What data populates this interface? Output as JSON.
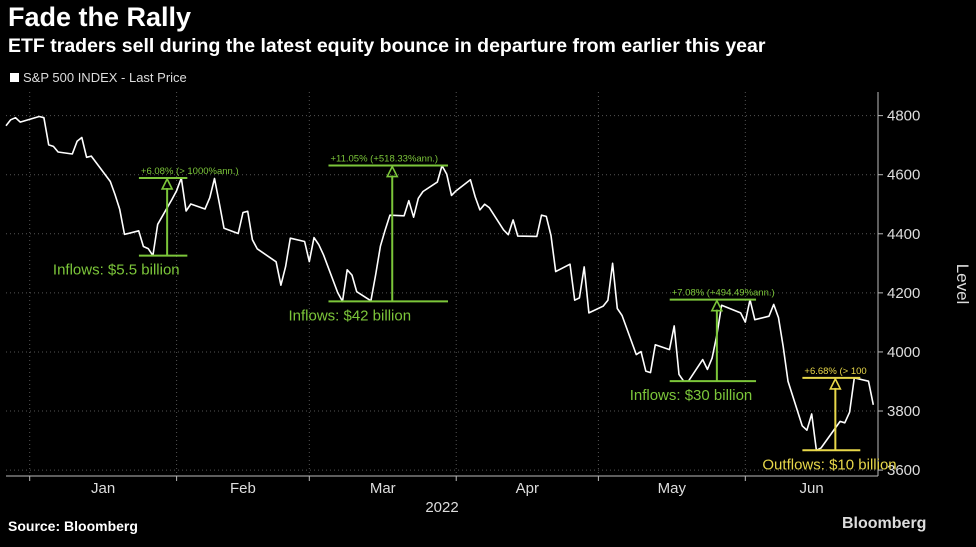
{
  "title": "Fade the Rally",
  "subtitle": "ETF traders sell during the latest equity bounce in departure from earlier this year",
  "legend": "S&P 500 INDEX - Last Price",
  "source": "Source: Bloomberg",
  "watermark": "Bloomberg",
  "colors": {
    "background": "#000000",
    "line": "#ffffff",
    "green": "#7cc63a",
    "yellow": "#e8d84a",
    "grid": "#555555"
  },
  "chart_data": {
    "type": "line",
    "title": "Fade the Rally",
    "ylabel": "Level",
    "xlabel": "2022",
    "ylim": [
      3580,
      4880
    ],
    "yticks": [
      3600,
      3800,
      4000,
      4200,
      4400,
      4600,
      4800
    ],
    "grid": true,
    "legend_position": "top-left",
    "x_month_labels": [
      "Jan",
      "Feb",
      "Mar",
      "Apr",
      "May",
      "Jun"
    ],
    "series": [
      {
        "name": "S&P 500 INDEX - Last Price",
        "points": [
          [
            "2021-12-27",
            4766
          ],
          [
            "2021-12-28",
            4786
          ],
          [
            "2021-12-29",
            4793
          ],
          [
            "2021-12-30",
            4778
          ],
          [
            "2022-01-03",
            4797
          ],
          [
            "2022-01-04",
            4793
          ],
          [
            "2022-01-05",
            4701
          ],
          [
            "2022-01-06",
            4696
          ],
          [
            "2022-01-07",
            4677
          ],
          [
            "2022-01-10",
            4670
          ],
          [
            "2022-01-11",
            4713
          ],
          [
            "2022-01-12",
            4726
          ],
          [
            "2022-01-13",
            4659
          ],
          [
            "2022-01-14",
            4663
          ],
          [
            "2022-01-18",
            4577
          ],
          [
            "2022-01-19",
            4533
          ],
          [
            "2022-01-20",
            4483
          ],
          [
            "2022-01-21",
            4398
          ],
          [
            "2022-01-24",
            4410
          ],
          [
            "2022-01-25",
            4357
          ],
          [
            "2022-01-26",
            4350
          ],
          [
            "2022-01-27",
            4326
          ],
          [
            "2022-01-28",
            4432
          ],
          [
            "2022-01-31",
            4516
          ],
          [
            "2022-02-01",
            4546
          ],
          [
            "2022-02-02",
            4589
          ],
          [
            "2022-02-03",
            4477
          ],
          [
            "2022-02-04",
            4501
          ],
          [
            "2022-02-07",
            4484
          ],
          [
            "2022-02-08",
            4522
          ],
          [
            "2022-02-09",
            4587
          ],
          [
            "2022-02-10",
            4504
          ],
          [
            "2022-02-11",
            4419
          ],
          [
            "2022-02-14",
            4401
          ],
          [
            "2022-02-15",
            4472
          ],
          [
            "2022-02-16",
            4476
          ],
          [
            "2022-02-17",
            4380
          ],
          [
            "2022-02-18",
            4349
          ],
          [
            "2022-02-22",
            4305
          ],
          [
            "2022-02-23",
            4226
          ],
          [
            "2022-02-24",
            4289
          ],
          [
            "2022-02-25",
            4385
          ],
          [
            "2022-02-28",
            4374
          ],
          [
            "2022-03-01",
            4306
          ],
          [
            "2022-03-02",
            4387
          ],
          [
            "2022-03-03",
            4363
          ],
          [
            "2022-03-04",
            4329
          ],
          [
            "2022-03-07",
            4201
          ],
          [
            "2022-03-08",
            4171
          ],
          [
            "2022-03-09",
            4278
          ],
          [
            "2022-03-10",
            4260
          ],
          [
            "2022-03-11",
            4204
          ],
          [
            "2022-03-14",
            4173
          ],
          [
            "2022-03-15",
            4262
          ],
          [
            "2022-03-16",
            4358
          ],
          [
            "2022-03-17",
            4412
          ],
          [
            "2022-03-18",
            4463
          ],
          [
            "2022-03-21",
            4461
          ],
          [
            "2022-03-22",
            4512
          ],
          [
            "2022-03-23",
            4456
          ],
          [
            "2022-03-24",
            4520
          ],
          [
            "2022-03-25",
            4543
          ],
          [
            "2022-03-28",
            4575
          ],
          [
            "2022-03-29",
            4631
          ],
          [
            "2022-03-30",
            4602
          ],
          [
            "2022-03-31",
            4530
          ],
          [
            "2022-04-01",
            4546
          ],
          [
            "2022-04-04",
            4583
          ],
          [
            "2022-04-05",
            4525
          ],
          [
            "2022-04-06",
            4481
          ],
          [
            "2022-04-07",
            4500
          ],
          [
            "2022-04-08",
            4488
          ],
          [
            "2022-04-11",
            4413
          ],
          [
            "2022-04-12",
            4397
          ],
          [
            "2022-04-13",
            4447
          ],
          [
            "2022-04-14",
            4392
          ],
          [
            "2022-04-18",
            4391
          ],
          [
            "2022-04-19",
            4463
          ],
          [
            "2022-04-20",
            4459
          ],
          [
            "2022-04-21",
            4394
          ],
          [
            "2022-04-22",
            4272
          ],
          [
            "2022-04-25",
            4297
          ],
          [
            "2022-04-26",
            4175
          ],
          [
            "2022-04-27",
            4183
          ],
          [
            "2022-04-28",
            4288
          ],
          [
            "2022-04-29",
            4132
          ],
          [
            "2022-05-02",
            4155
          ],
          [
            "2022-05-03",
            4175
          ],
          [
            "2022-05-04",
            4300
          ],
          [
            "2022-05-05",
            4147
          ],
          [
            "2022-05-06",
            4123
          ],
          [
            "2022-05-09",
            3991
          ],
          [
            "2022-05-10",
            4001
          ],
          [
            "2022-05-11",
            3935
          ],
          [
            "2022-05-12",
            3930
          ],
          [
            "2022-05-13",
            4024
          ],
          [
            "2022-05-16",
            4008
          ],
          [
            "2022-05-17",
            4088
          ],
          [
            "2022-05-18",
            3924
          ],
          [
            "2022-05-19",
            3901
          ],
          [
            "2022-05-20",
            3901
          ],
          [
            "2022-05-23",
            3974
          ],
          [
            "2022-05-24",
            3941
          ],
          [
            "2022-05-25",
            3979
          ],
          [
            "2022-05-26",
            4058
          ],
          [
            "2022-05-27",
            4158
          ],
          [
            "2022-05-31",
            4132
          ],
          [
            "2022-06-01",
            4101
          ],
          [
            "2022-06-02",
            4177
          ],
          [
            "2022-06-03",
            4109
          ],
          [
            "2022-06-06",
            4121
          ],
          [
            "2022-06-07",
            4161
          ],
          [
            "2022-06-08",
            4116
          ],
          [
            "2022-06-09",
            4018
          ],
          [
            "2022-06-10",
            3901
          ],
          [
            "2022-06-13",
            3750
          ],
          [
            "2022-06-14",
            3735
          ],
          [
            "2022-06-15",
            3790
          ],
          [
            "2022-06-16",
            3667
          ],
          [
            "2022-06-17",
            3675
          ],
          [
            "2022-06-21",
            3765
          ],
          [
            "2022-06-22",
            3760
          ],
          [
            "2022-06-23",
            3796
          ],
          [
            "2022-06-24",
            3912
          ],
          [
            "2022-06-27",
            3901
          ],
          [
            "2022-06-28",
            3821
          ]
        ]
      }
    ],
    "annotations": [
      {
        "type": "rally",
        "color": "green",
        "from_date": "2022-01-27",
        "to_date": "2022-02-02",
        "low": 4326,
        "high": 4589,
        "change_label": "+6.08% (> 1000%ann.)",
        "flow_label": "Inflows: $5.5 billion"
      },
      {
        "type": "rally",
        "color": "green",
        "from_date": "2022-03-08",
        "to_date": "2022-03-29",
        "low": 4171,
        "high": 4631,
        "change_label": "+11.05% (+518.33%ann.)",
        "flow_label": "Inflows: $42 billion"
      },
      {
        "type": "rally",
        "color": "green",
        "from_date": "2022-05-19",
        "to_date": "2022-06-02",
        "low": 3901,
        "high": 4177,
        "change_label": "+7.08% (+494.49%ann.)",
        "flow_label": "Inflows: $30 billion"
      },
      {
        "type": "rally",
        "color": "yellow",
        "from_date": "2022-06-16",
        "to_date": "2022-06-24",
        "low": 3667,
        "high": 3912,
        "change_label": "+6.68% (> 100",
        "flow_label": "Outflows: $10 billion"
      }
    ]
  }
}
